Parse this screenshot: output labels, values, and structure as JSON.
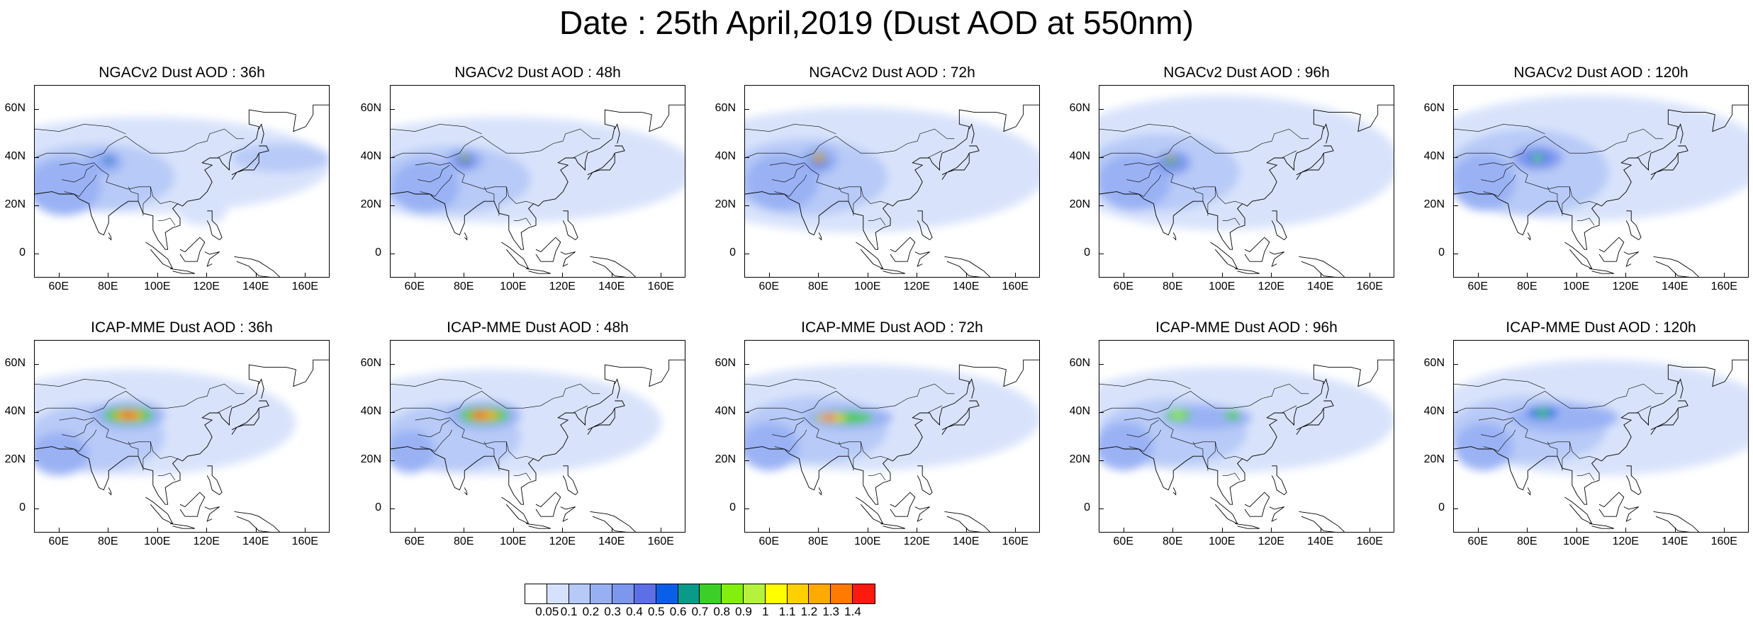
{
  "title": "Date : 25th April,2019 (Dust AOD at 550nm)",
  "panels": [
    {
      "title": "NGACv2 Dust AOD : 36h",
      "model": "NGACv2",
      "lead": "36h"
    },
    {
      "title": "NGACv2 Dust AOD : 48h",
      "model": "NGACv2",
      "lead": "48h"
    },
    {
      "title": "NGACv2 Dust AOD : 72h",
      "model": "NGACv2",
      "lead": "72h"
    },
    {
      "title": "NGACv2 Dust AOD : 96h",
      "model": "NGACv2",
      "lead": "96h"
    },
    {
      "title": "NGACv2 Dust AOD : 120h",
      "model": "NGACv2",
      "lead": "120h"
    },
    {
      "title": "ICAP-MME Dust AOD : 36h",
      "model": "ICAP-MME",
      "lead": "36h"
    },
    {
      "title": "ICAP-MME Dust AOD : 48h",
      "model": "ICAP-MME",
      "lead": "48h"
    },
    {
      "title": "ICAP-MME Dust AOD : 72h",
      "model": "ICAP-MME",
      "lead": "72h"
    },
    {
      "title": "ICAP-MME Dust AOD : 96h",
      "model": "ICAP-MME",
      "lead": "96h"
    },
    {
      "title": "ICAP-MME Dust AOD : 120h",
      "model": "ICAP-MME",
      "lead": "120h"
    }
  ],
  "axes": {
    "lat_ticks": [
      "60N",
      "40N",
      "20N",
      "0"
    ],
    "lon_ticks": [
      "60E",
      "80E",
      "100E",
      "120E",
      "140E",
      "160E"
    ]
  },
  "colorbar": {
    "labels": [
      "0.05",
      "0.1",
      "0.2",
      "0.3",
      "0.4",
      "0.5",
      "0.6",
      "0.7",
      "0.8",
      "0.9",
      "1",
      "1.1",
      "1.2",
      "1.3",
      "1.4"
    ],
    "colors": [
      "#ffffff",
      "#d6e2fb",
      "#b6c9f7",
      "#98b0f3",
      "#7e97ee",
      "#5d6fe6",
      "#0a5fe8",
      "#0a9a8a",
      "#3ccf28",
      "#82f00c",
      "#b5f23c",
      "#ffff00",
      "#ffd000",
      "#ffaa00",
      "#ff7a00",
      "#ff1a10"
    ]
  }
}
